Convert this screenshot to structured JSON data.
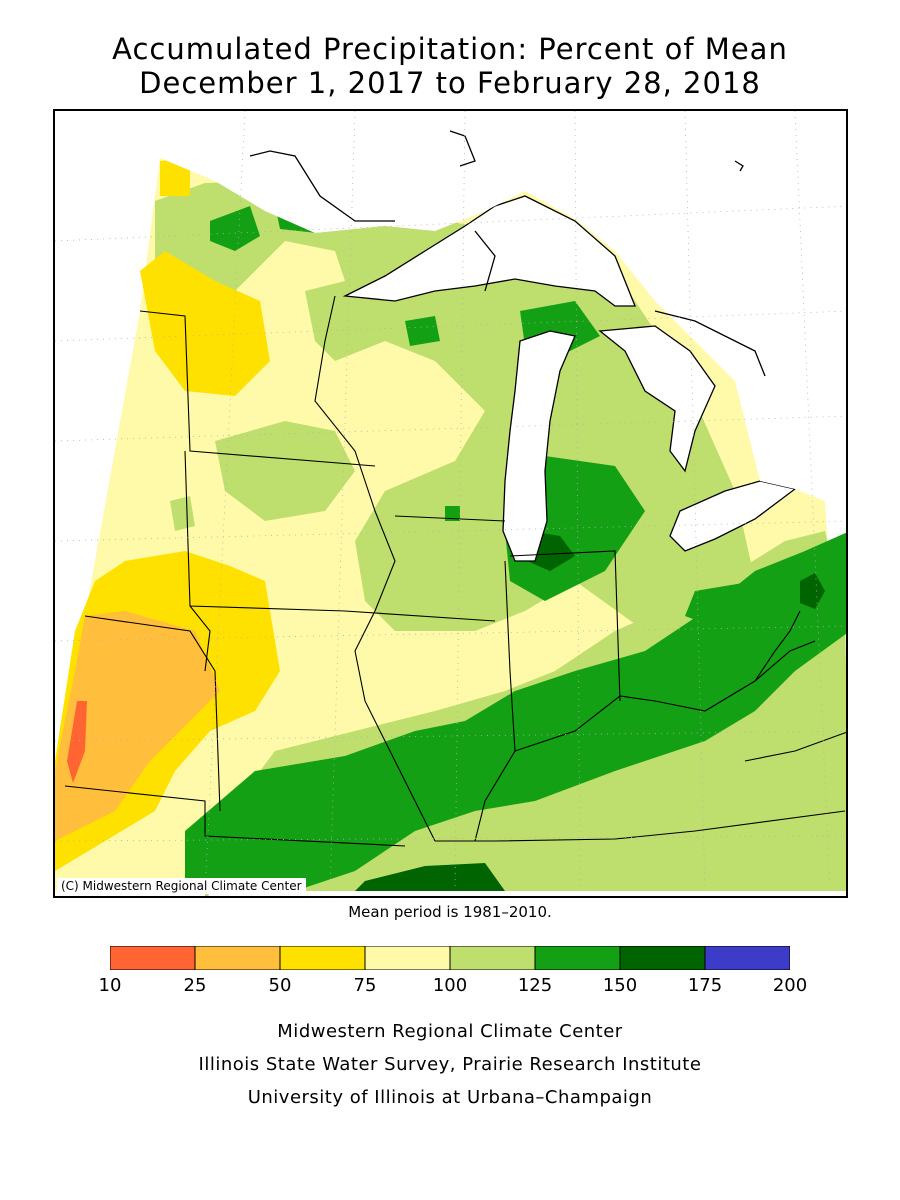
{
  "title": {
    "line1": "Accumulated Precipitation: Percent of Mean",
    "line2": "December 1, 2017 to February 28, 2018"
  },
  "map": {
    "copyright": "(C) Midwestern Regional Climate Center"
  },
  "mean_period": "Mean period is 1981–2010.",
  "legend": {
    "ticks": [
      "10",
      "25",
      "50",
      "75",
      "100",
      "125",
      "150",
      "175",
      "200"
    ],
    "colors": [
      "#ff6432",
      "#ffbe3c",
      "#ffe100",
      "#fffaaa",
      "#bede6e",
      "#14a014",
      "#006400",
      "#3c3cc8"
    ]
  },
  "credits": {
    "line1": "Midwestern Regional Climate Center",
    "line2": "Illinois State Water Survey, Prairie Research Institute",
    "line3": "University of Illinois at Urbana–Champaign"
  }
}
